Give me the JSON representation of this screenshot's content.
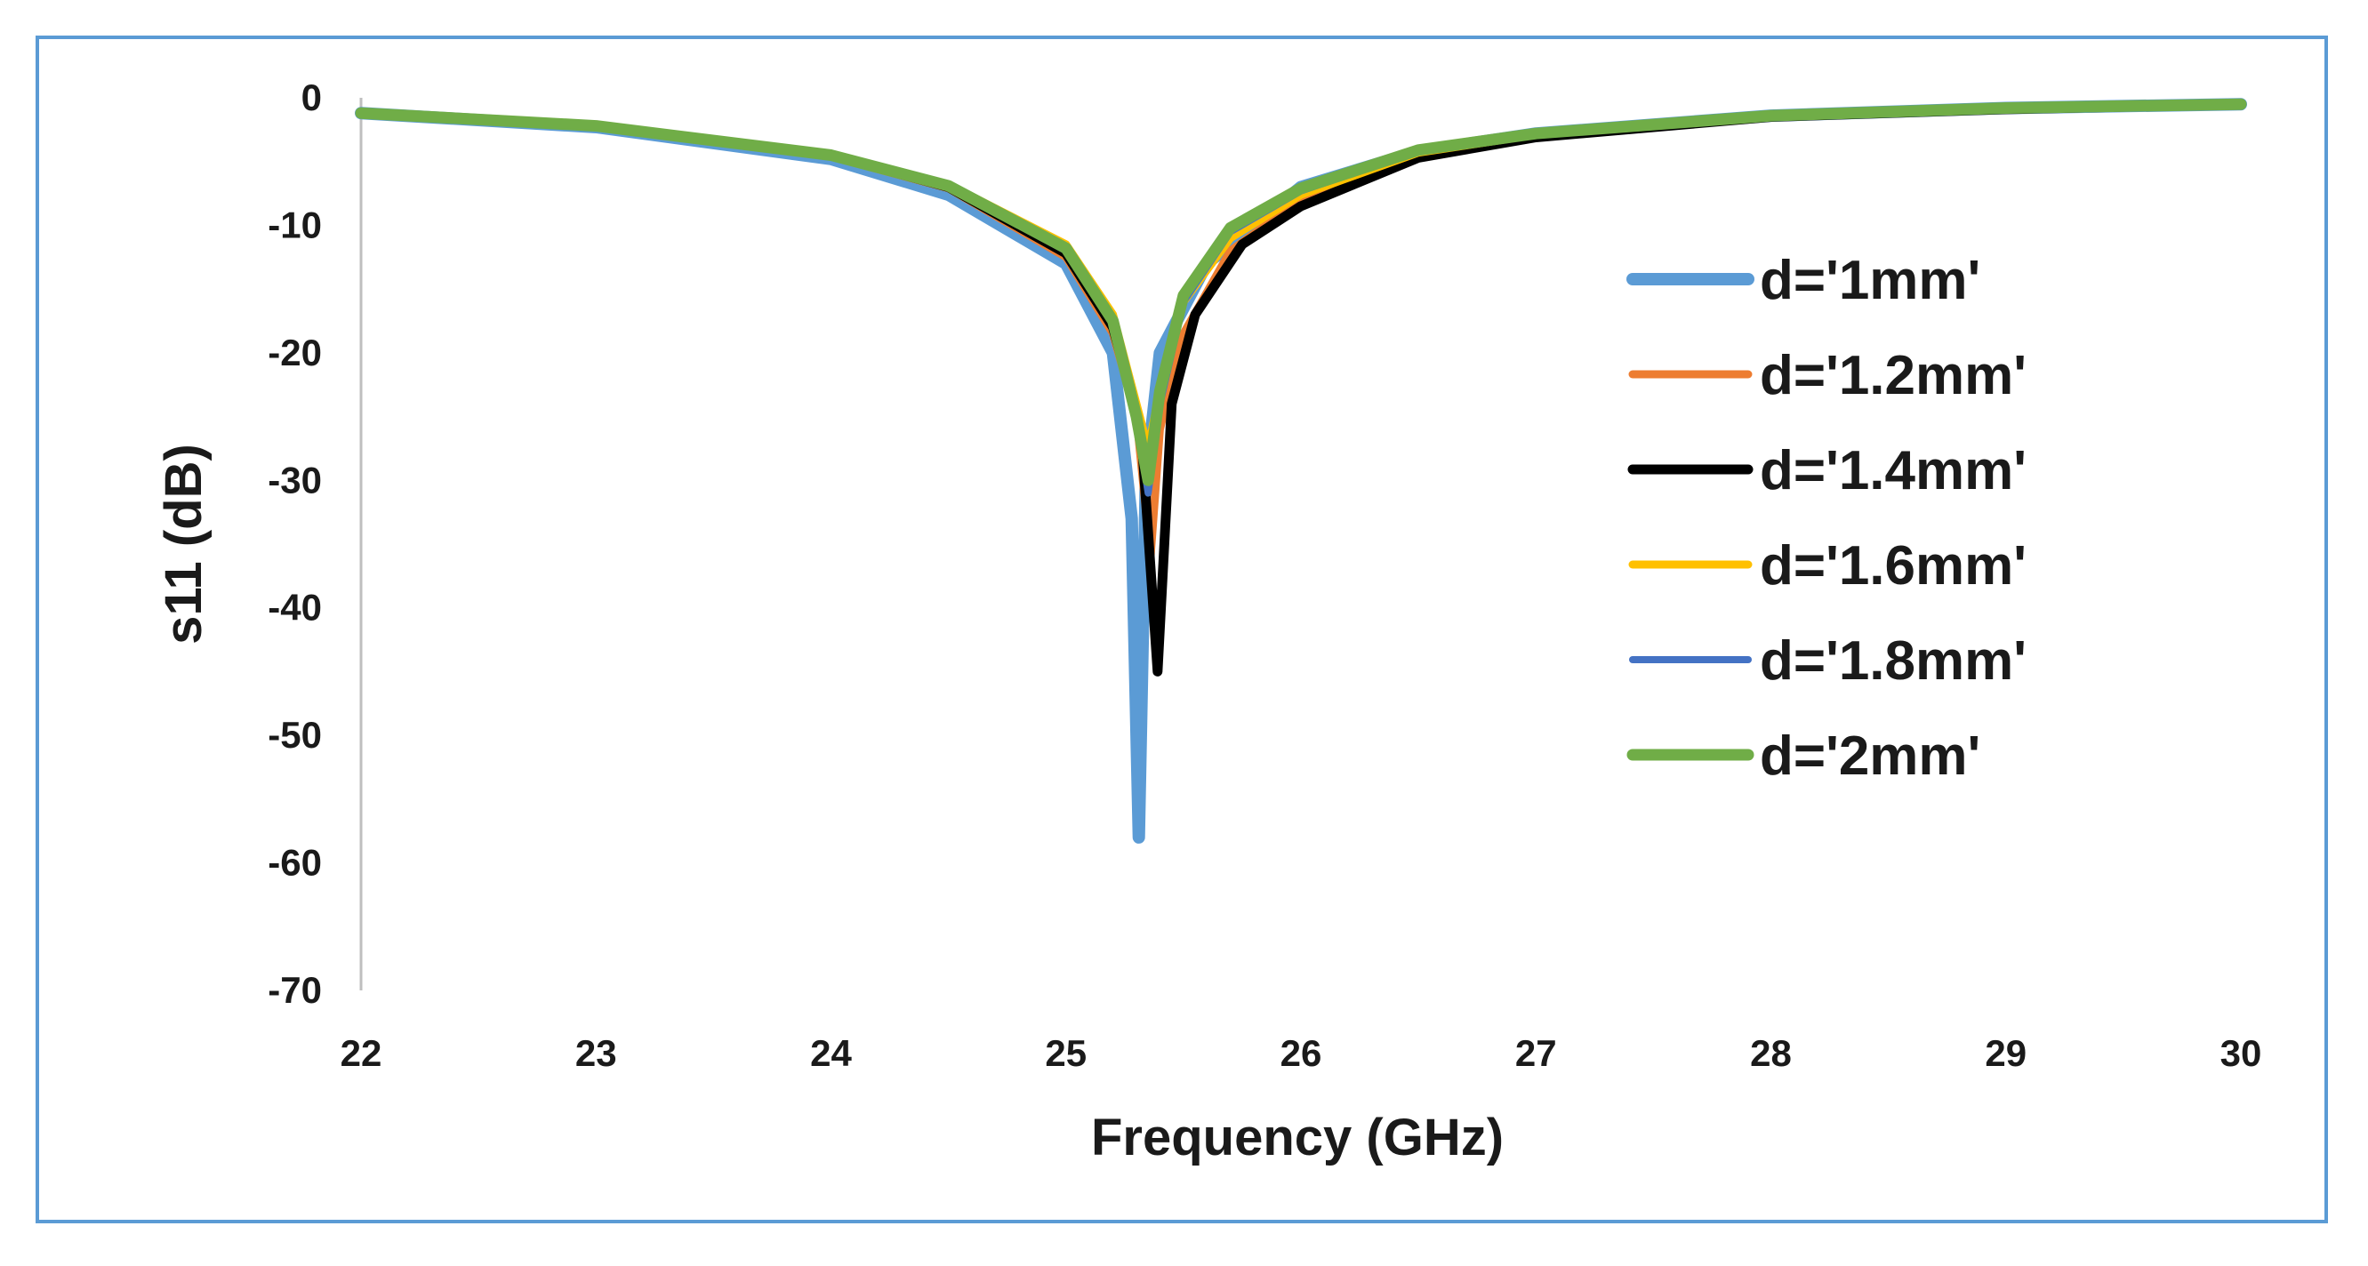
{
  "chart_data": {
    "type": "line",
    "xlabel": "Frequency (GHz)",
    "ylabel": "s11 (dB)",
    "xlim": [
      22,
      30
    ],
    "ylim": [
      -70,
      0
    ],
    "xticks": [
      22,
      23,
      24,
      25,
      26,
      27,
      28,
      29,
      30
    ],
    "yticks": [
      0,
      -10,
      -20,
      -30,
      -40,
      -50,
      -60,
      -70
    ],
    "grid": false,
    "legend_position": "right",
    "series": [
      {
        "name": "d='1mm'",
        "color": "#5b9bd5",
        "x": [
          22,
          23,
          24,
          24.5,
          25,
          25.2,
          25.28,
          25.31,
          25.34,
          25.4,
          25.6,
          26,
          26.5,
          27,
          28,
          29,
          30
        ],
        "y": [
          -1.2,
          -2.3,
          -4.8,
          -7.6,
          -13,
          -20,
          -33,
          -58,
          -30,
          -20,
          -13,
          -7,
          -4.2,
          -2.8,
          -1.4,
          -0.8,
          -0.5
        ]
      },
      {
        "name": "d='1.2mm'",
        "color": "#ed7d31",
        "x": [
          22,
          23,
          24,
          24.5,
          25,
          25.2,
          25.3,
          25.36,
          25.4,
          25.5,
          25.7,
          26,
          26.5,
          27,
          28,
          29,
          30
        ],
        "y": [
          -1.2,
          -2.2,
          -4.6,
          -7.1,
          -12.5,
          -18.5,
          -25,
          -36,
          -26,
          -18.5,
          -12,
          -8,
          -4.5,
          -3,
          -1.5,
          -0.9,
          -0.5
        ]
      },
      {
        "name": "d='1.4mm'",
        "color": "#000000",
        "x": [
          22,
          23,
          24,
          24.5,
          25,
          25.2,
          25.32,
          25.39,
          25.45,
          25.55,
          25.75,
          26,
          26.5,
          27,
          28,
          29,
          30
        ],
        "y": [
          -1.2,
          -2.2,
          -4.5,
          -7,
          -12.2,
          -18,
          -26,
          -45,
          -24,
          -17,
          -11.5,
          -8.5,
          -4.7,
          -3.1,
          -1.5,
          -0.9,
          -0.5
        ]
      },
      {
        "name": "d='1.6mm'",
        "color": "#ffc000",
        "x": [
          22,
          23,
          24,
          24.5,
          25,
          25.2,
          25.3,
          25.35,
          25.4,
          25.5,
          25.7,
          26,
          26.5,
          27,
          28,
          29,
          30
        ],
        "y": [
          -1.2,
          -2.2,
          -4.4,
          -6.8,
          -11.5,
          -17,
          -24,
          -27.5,
          -23,
          -16,
          -11,
          -7.6,
          -4.3,
          -2.9,
          -1.4,
          -0.8,
          -0.5
        ]
      },
      {
        "name": "d='1.8mm'",
        "color": "#4472c4",
        "x": [
          22,
          23,
          24,
          24.5,
          25,
          25.2,
          25.3,
          25.35,
          25.4,
          25.5,
          25.7,
          26,
          26.5,
          27,
          28,
          29,
          30
        ],
        "y": [
          -1.2,
          -2.2,
          -4.5,
          -7,
          -12,
          -17.5,
          -25,
          -31,
          -24,
          -16,
          -10.5,
          -7.3,
          -4.2,
          -2.8,
          -1.4,
          -0.8,
          -0.5
        ]
      },
      {
        "name": "d='2mm'",
        "color": "#70ad47",
        "x": [
          22,
          23,
          24,
          24.5,
          25,
          25.2,
          25.3,
          25.35,
          25.4,
          25.5,
          25.7,
          26,
          26.5,
          27,
          28,
          29,
          30
        ],
        "y": [
          -1.2,
          -2.2,
          -4.5,
          -6.9,
          -11.8,
          -17.5,
          -25,
          -30,
          -23,
          -15.5,
          -10.2,
          -7.1,
          -4.1,
          -2.8,
          -1.4,
          -0.8,
          -0.5
        ]
      }
    ]
  }
}
